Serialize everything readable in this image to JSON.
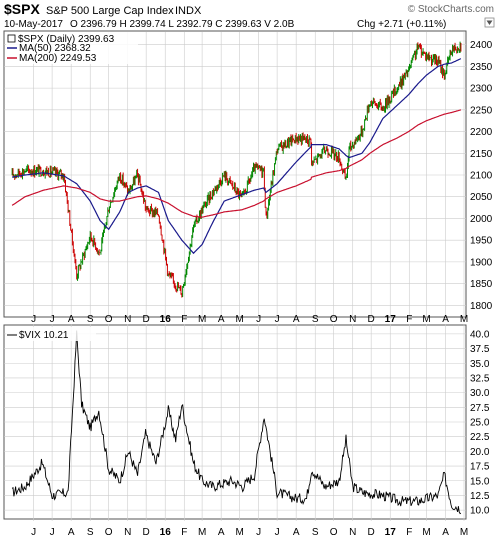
{
  "header": {
    "symbol": "$SPX",
    "name": "S&P 500 Large Cap Index",
    "exchange": "INDX",
    "watermark": "© StockCharts.com",
    "date": "10-May-2017",
    "ohlc": "O 2396.79  H 2399.74  L 2392.79  C 2399.63  V 2.0B",
    "chg": "Chg +2.71 (+0.11%)"
  },
  "colors": {
    "price": "#000000",
    "up": "#008800",
    "down": "#cc0000",
    "ma50": "#1a1a8c",
    "ma200": "#c8102e",
    "grid": "#cccccc",
    "vix": "#000000"
  },
  "legend": {
    "price": "$SPX (Daily) 2399.63",
    "ma50": "MA(50) 2368.32",
    "ma200": "MA(200) 2249.53",
    "vix": "$VIX 10.21"
  },
  "x_axis": {
    "labels": [
      "J",
      "J",
      "A",
      "S",
      "O",
      "N",
      "D",
      "16",
      "F",
      "M",
      "A",
      "M",
      "J",
      "J",
      "A",
      "S",
      "O",
      "N",
      "D",
      "17",
      "F",
      "M",
      "A",
      "M"
    ],
    "bold": [
      "16",
      "17"
    ]
  },
  "chart_data": [
    {
      "type": "line",
      "title": "$SPX",
      "ylim": [
        1780,
        2420
      ],
      "yticks": [
        1800,
        1850,
        1900,
        1950,
        2000,
        2050,
        2100,
        2150,
        2200,
        2250,
        2300,
        2350,
        2400
      ],
      "x": [
        "2015-05-11",
        "2015-06-01",
        "2015-07-01",
        "2015-08-03",
        "2015-08-24",
        "2015-09-15",
        "2015-10-01",
        "2015-10-15",
        "2015-11-02",
        "2015-11-16",
        "2015-12-01",
        "2015-12-15",
        "2016-01-04",
        "2016-01-20",
        "2016-02-11",
        "2016-03-01",
        "2016-03-15",
        "2016-04-01",
        "2016-04-20",
        "2016-05-19",
        "2016-06-08",
        "2016-06-23",
        "2016-06-27",
        "2016-07-15",
        "2016-08-15",
        "2016-09-08",
        "2016-09-09",
        "2016-10-03",
        "2016-10-24",
        "2016-11-04",
        "2016-11-09",
        "2016-11-30",
        "2016-12-13",
        "2017-01-03",
        "2017-01-26",
        "2017-02-14",
        "2017-03-01",
        "2017-03-15",
        "2017-04-03",
        "2017-04-13",
        "2017-04-25",
        "2017-05-10"
      ],
      "series": [
        {
          "name": "$SPX (Daily)",
          "values": [
            2100,
            2110,
            2110,
            2100,
            1870,
            1960,
            1920,
            2025,
            2100,
            2060,
            2100,
            2020,
            2010,
            1870,
            1830,
            1980,
            2020,
            2060,
            2100,
            2045,
            2115,
            2110,
            2000,
            2160,
            2185,
            2180,
            2125,
            2160,
            2140,
            2085,
            2160,
            2200,
            2270,
            2255,
            2300,
            2340,
            2395,
            2375,
            2360,
            2330,
            2390,
            2400
          ]
        },
        {
          "name": "MA(50)",
          "values": [
            2095,
            2100,
            2105,
            2098,
            2080,
            2040,
            1995,
            1975,
            2015,
            2060,
            2070,
            2075,
            2060,
            1995,
            1950,
            1920,
            1940,
            1990,
            2040,
            2055,
            2065,
            2070,
            2060,
            2080,
            2130,
            2165,
            2170,
            2170,
            2160,
            2145,
            2140,
            2150,
            2175,
            2230,
            2260,
            2285,
            2310,
            2330,
            2350,
            2355,
            2358,
            2368
          ]
        },
        {
          "name": "MA(200)",
          "values": [
            2030,
            2050,
            2065,
            2075,
            2070,
            2060,
            2045,
            2040,
            2040,
            2045,
            2050,
            2052,
            2045,
            2035,
            2015,
            2005,
            2003,
            2008,
            2015,
            2020,
            2030,
            2040,
            2045,
            2060,
            2075,
            2090,
            2095,
            2105,
            2110,
            2115,
            2120,
            2135,
            2150,
            2170,
            2185,
            2200,
            2215,
            2225,
            2235,
            2240,
            2244,
            2250
          ]
        }
      ]
    },
    {
      "type": "line",
      "title": "$VIX",
      "ylim": [
        9,
        41
      ],
      "yticks": [
        10,
        12.5,
        15,
        17.5,
        20,
        22.5,
        25,
        27.5,
        30,
        32.5,
        35,
        37.5,
        40
      ],
      "x": [
        "2015-05-11",
        "2015-06-01",
        "2015-06-29",
        "2015-07-15",
        "2015-08-10",
        "2015-08-24",
        "2015-09-01",
        "2015-09-15",
        "2015-09-29",
        "2015-10-15",
        "2015-11-02",
        "2015-11-16",
        "2015-12-01",
        "2015-12-14",
        "2015-12-31",
        "2016-01-20",
        "2016-02-01",
        "2016-02-11",
        "2016-03-01",
        "2016-03-15",
        "2016-04-01",
        "2016-05-02",
        "2016-05-20",
        "2016-06-08",
        "2016-06-24",
        "2016-07-15",
        "2016-08-15",
        "2016-09-01",
        "2016-09-09",
        "2016-10-01",
        "2016-10-24",
        "2016-11-04",
        "2016-11-15",
        "2016-12-01",
        "2017-01-03",
        "2017-02-01",
        "2017-03-01",
        "2017-04-03",
        "2017-04-13",
        "2017-04-25",
        "2017-05-10"
      ],
      "series": [
        {
          "name": "$VIX",
          "values": [
            13,
            14,
            18,
            12.5,
            13,
            40,
            28,
            24,
            27,
            17,
            15,
            20,
            16,
            23,
            18,
            27,
            22,
            28,
            18,
            15,
            14,
            15,
            14,
            16,
            26,
            13,
            12,
            12,
            17,
            14,
            15,
            22,
            14,
            13,
            12.5,
            11.5,
            11.5,
            12.5,
            16,
            11,
            10.2
          ]
        }
      ]
    }
  ]
}
